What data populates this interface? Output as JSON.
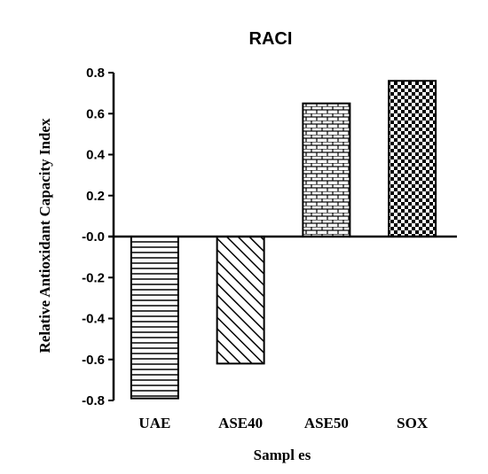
{
  "chart_data": {
    "type": "bar",
    "title": "RACI",
    "xlabel": "Sampl es",
    "ylabel": "Relative Antioxidant Capacity Index",
    "categories": [
      "UAE",
      "ASE40",
      "ASE50",
      "SOX"
    ],
    "values": [
      -0.79,
      -0.62,
      0.65,
      0.76
    ],
    "ylim": [
      -0.8,
      0.8
    ],
    "yticks": [
      {
        "value": 0.8,
        "label": "0.8"
      },
      {
        "value": 0.6,
        "label": "0.6"
      },
      {
        "value": 0.4,
        "label": "0.4"
      },
      {
        "value": 0.2,
        "label": "0.2"
      },
      {
        "value": 0.0,
        "label": "-0.0"
      },
      {
        "value": -0.2,
        "label": "-0.2"
      },
      {
        "value": -0.4,
        "label": "-0.4"
      },
      {
        "value": -0.6,
        "label": "-0.6"
      },
      {
        "value": -0.8,
        "label": "-0.8"
      }
    ],
    "patterns": [
      "horizontal-lines",
      "diagonal-hatch",
      "brick",
      "checkerboard"
    ],
    "bar_stroke_color": "#000000",
    "bar_fill_color": "#ffffff",
    "grid": false,
    "legend": "none"
  }
}
